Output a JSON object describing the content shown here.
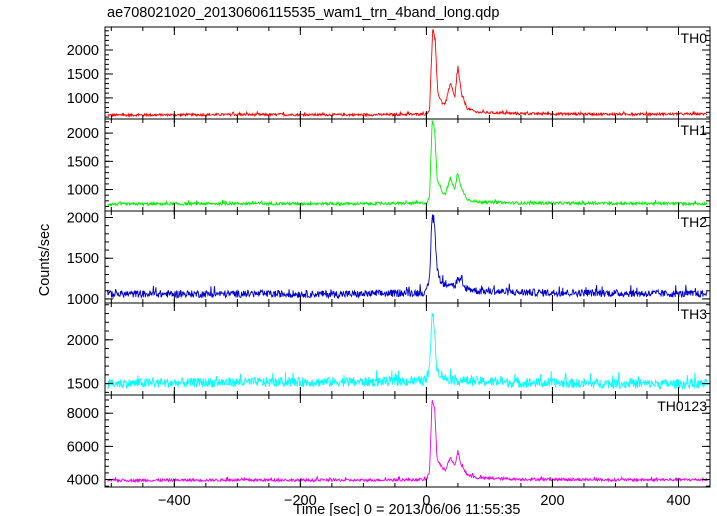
{
  "chart_data": {
    "type": "line",
    "title": "ae708021020_20130606115535_wam1_trn_4band_long.qdp",
    "xlabel": "Time [sec] 0 = 2013/06/06 11:55:35",
    "ylabel": "Counts/sec",
    "xlim": [
      -510,
      450
    ],
    "x_ticks": [
      -400,
      -200,
      0,
      200,
      400
    ],
    "x_tick_labels": [
      "−400",
      "−200",
      "0",
      "200",
      "400"
    ],
    "series": [
      {
        "name": "TH0",
        "color": "#ff0000",
        "ylim": [
          560,
          2480
        ],
        "y_ticks": [
          1000,
          1500,
          2000
        ],
        "baseline": 650,
        "noise": 25,
        "points": [
          [
            -505,
            640
          ],
          [
            -300,
            652
          ],
          [
            -100,
            648
          ],
          [
            0,
            660
          ],
          [
            5,
            760
          ],
          [
            10,
            2450
          ],
          [
            14,
            2200
          ],
          [
            18,
            1100
          ],
          [
            25,
            900
          ],
          [
            30,
            880
          ],
          [
            38,
            1300
          ],
          [
            45,
            1000
          ],
          [
            50,
            1650
          ],
          [
            56,
            1050
          ],
          [
            65,
            780
          ],
          [
            80,
            700
          ],
          [
            150,
            672
          ],
          [
            300,
            660
          ],
          [
            445,
            665
          ]
        ]
      },
      {
        "name": "TH1",
        "color": "#00ee00",
        "ylim": [
          620,
          2250
        ],
        "y_ticks": [
          1000,
          1500,
          2000
        ],
        "baseline": 740,
        "noise": 25,
        "points": [
          [
            -505,
            740
          ],
          [
            -300,
            752
          ],
          [
            -100,
            748
          ],
          [
            0,
            760
          ],
          [
            5,
            860
          ],
          [
            9,
            2200
          ],
          [
            13,
            2100
          ],
          [
            17,
            1200
          ],
          [
            25,
            960
          ],
          [
            30,
            920
          ],
          [
            38,
            1200
          ],
          [
            45,
            1000
          ],
          [
            50,
            1300
          ],
          [
            56,
            1000
          ],
          [
            65,
            830
          ],
          [
            80,
            780
          ],
          [
            150,
            760
          ],
          [
            300,
            755
          ],
          [
            445,
            750
          ]
        ]
      },
      {
        "name": "TH2",
        "color": "#0000cc",
        "ylim": [
          950,
          2080
        ],
        "y_ticks": [
          1000,
          1500,
          2000
        ],
        "baseline": 1060,
        "noise": 45,
        "points": [
          [
            -505,
            1060
          ],
          [
            -300,
            1062
          ],
          [
            -100,
            1058
          ],
          [
            0,
            1080
          ],
          [
            5,
            1250
          ],
          [
            9,
            2050
          ],
          [
            13,
            1900
          ],
          [
            17,
            1350
          ],
          [
            25,
            1180
          ],
          [
            38,
            1200
          ],
          [
            45,
            1150
          ],
          [
            50,
            1250
          ],
          [
            60,
            1140
          ],
          [
            80,
            1100
          ],
          [
            150,
            1080
          ],
          [
            300,
            1070
          ],
          [
            445,
            1060
          ]
        ]
      },
      {
        "name": "TH3",
        "color": "#00ffff",
        "ylim": [
          1370,
          2420
        ],
        "y_ticks": [
          1500,
          2000
        ],
        "baseline": 1500,
        "noise": 55,
        "points": [
          [
            -505,
            1500
          ],
          [
            -300,
            1515
          ],
          [
            -100,
            1520
          ],
          [
            0,
            1530
          ],
          [
            5,
            1650
          ],
          [
            9,
            2350
          ],
          [
            13,
            2100
          ],
          [
            17,
            1650
          ],
          [
            30,
            1560
          ],
          [
            60,
            1530
          ],
          [
            150,
            1510
          ],
          [
            300,
            1500
          ],
          [
            445,
            1495
          ]
        ]
      },
      {
        "name": "TH0123",
        "color": "#ee00ee",
        "ylim": [
          3550,
          9100
        ],
        "y_ticks": [
          4000,
          6000,
          8000
        ],
        "baseline": 3950,
        "noise": 80,
        "points": [
          [
            -505,
            3950
          ],
          [
            -300,
            3970
          ],
          [
            -100,
            3960
          ],
          [
            0,
            4000
          ],
          [
            5,
            4500
          ],
          [
            9,
            8800
          ],
          [
            13,
            8400
          ],
          [
            17,
            5200
          ],
          [
            25,
            4700
          ],
          [
            30,
            4600
          ],
          [
            38,
            5300
          ],
          [
            45,
            4800
          ],
          [
            50,
            5700
          ],
          [
            56,
            4800
          ],
          [
            65,
            4300
          ],
          [
            80,
            4100
          ],
          [
            150,
            4020
          ],
          [
            300,
            3980
          ],
          [
            445,
            3990
          ]
        ]
      }
    ]
  }
}
